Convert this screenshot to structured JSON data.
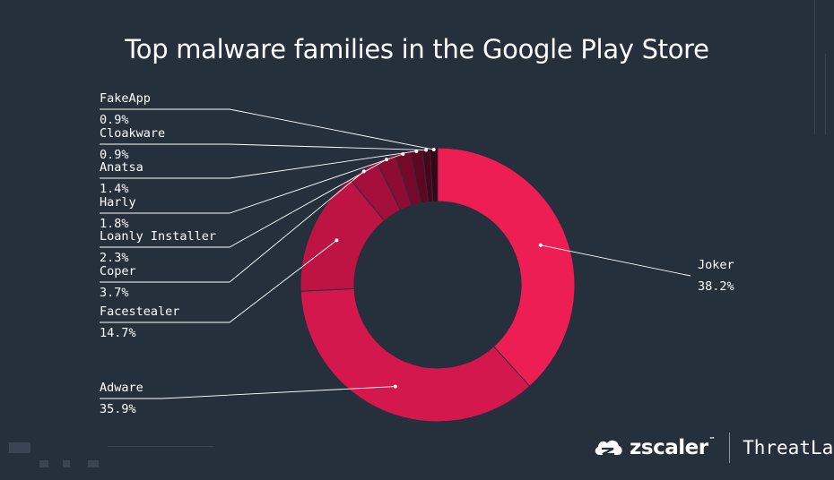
{
  "chart_data": {
    "type": "pie",
    "title": "Top malware families in the Google Play Store",
    "series": [
      {
        "name": "Joker",
        "value": 38.2,
        "value_label": "38.2%",
        "color": "#ec1e54"
      },
      {
        "name": "Adware",
        "value": 35.9,
        "value_label": "35.9%",
        "color": "#d4184d"
      },
      {
        "name": "Facestealer",
        "value": 14.7,
        "value_label": "14.7%",
        "color": "#bd1444"
      },
      {
        "name": "Coper",
        "value": 3.7,
        "value_label": "3.7%",
        "color": "#a4103b"
      },
      {
        "name": "Loanly Installer",
        "value": 2.3,
        "value_label": "2.3%",
        "color": "#8c0c33"
      },
      {
        "name": "Harly",
        "value": 1.8,
        "value_label": "1.8%",
        "color": "#75082b"
      },
      {
        "name": "Anatsa",
        "value": 1.4,
        "value_label": "1.4%",
        "color": "#5f0623"
      },
      {
        "name": "Cloakware",
        "value": 0.9,
        "value_label": "0.9%",
        "color": "#4a041c"
      },
      {
        "name": "FakeApp",
        "value": 0.9,
        "value_label": "0.9%",
        "color": "#3a0316"
      }
    ]
  },
  "brand": {
    "logo_text": "zscaler",
    "trademark": "™",
    "product": "ThreatLabz",
    "logo_icon": "zscaler-cloud-icon"
  },
  "colors": {
    "background": "#262f3c",
    "text": "#ffffff",
    "leader_line": "#ffffff"
  }
}
